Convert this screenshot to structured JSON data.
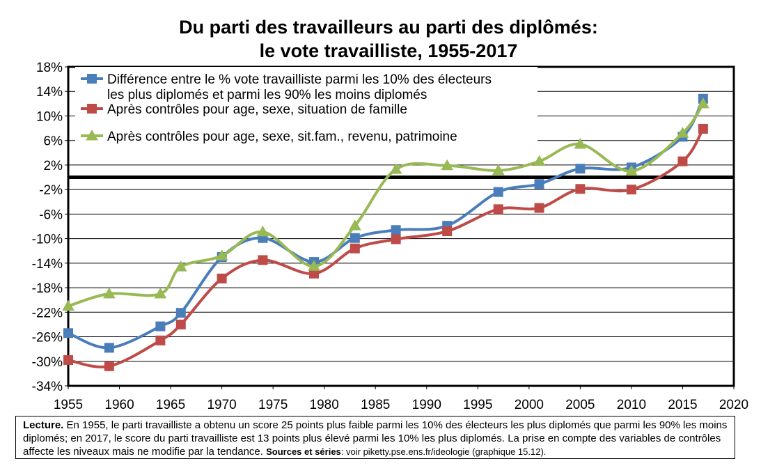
{
  "chart_data": {
    "type": "line",
    "title": [
      "Du parti des travailleurs au parti des diplômés:",
      "le vote travailliste, 1955-2017"
    ],
    "xlabel": "",
    "ylabel": "",
    "xlim": [
      1955,
      2020
    ],
    "ylim": [
      -34,
      18
    ],
    "x_ticks": [
      1955,
      1960,
      1965,
      1970,
      1975,
      1980,
      1985,
      1990,
      1995,
      2000,
      2005,
      2010,
      2015,
      2020
    ],
    "x_tick_labels": [
      "1955",
      "1960",
      "1965",
      "1970",
      "1975",
      "1980",
      "1985",
      "1990",
      "1995",
      "2000",
      "2005",
      "2010",
      "2015",
      "2020"
    ],
    "y_ticks": [
      18,
      14,
      10,
      6,
      2,
      -2,
      -6,
      -10,
      -14,
      -18,
      -22,
      -26,
      -30,
      -34
    ],
    "y_tick_labels": [
      "18%",
      "14%",
      "10%",
      "6%",
      "2%",
      "-2%",
      "-6%",
      "-10%",
      "-14%",
      "-18%",
      "-22%",
      "-26%",
      "-30%",
      "-34%"
    ],
    "grid": true,
    "reference_line_y": 0,
    "legend_placement": "top-left",
    "series": [
      {
        "name": "Différence entre le % vote travailliste parmi les 10% des électeurs les plus diplomés et parmi les 90% les moins diplomés",
        "name_lines": [
          "Différence entre le % vote travailliste parmi les 10% des électeurs",
          "les plus diplomés et parmi les 90% les moins diplomés"
        ],
        "color": "#4a7ebb",
        "marker": "square",
        "x": [
          1955,
          1959,
          1964,
          1966,
          1970,
          1974,
          1979,
          1983,
          1987,
          1992,
          1997,
          2001,
          2005,
          2010,
          2015,
          2017
        ],
        "y": [
          -25.4,
          -27.8,
          -24.3,
          -22.1,
          -13.0,
          -9.9,
          -13.8,
          -9.9,
          -8.6,
          -7.9,
          -2.4,
          -1.1,
          1.4,
          1.6,
          6.6,
          12.8
        ]
      },
      {
        "name": "Après contrôles pour age, sexe, situation de famille",
        "name_lines": [
          "Après contrôles pour age, sexe, situation de famille"
        ],
        "color": "#be4b48",
        "marker": "square",
        "x": [
          1955,
          1959,
          1964,
          1966,
          1970,
          1974,
          1979,
          1983,
          1987,
          1992,
          1997,
          2001,
          2005,
          2010,
          2015,
          2017
        ],
        "y": [
          -29.8,
          -30.8,
          -26.6,
          -24.0,
          -16.5,
          -13.5,
          -15.7,
          -11.6,
          -10.1,
          -8.8,
          -5.2,
          -5.0,
          -1.9,
          -2.0,
          2.6,
          7.9
        ]
      },
      {
        "name": "Après contrôles pour age, sexe, sit.fam., revenu, patrimoine",
        "name_lines": [
          "Après contrôles pour age, sexe, sit.fam., revenu, patrimoine"
        ],
        "color": "#98b954",
        "marker": "triangle",
        "x": [
          1955,
          1959,
          1964,
          1966,
          1970,
          1974,
          1979,
          1983,
          1987,
          1992,
          1997,
          2001,
          2005,
          2010,
          2015,
          2017
        ],
        "y": [
          -21.0,
          -19.0,
          -19.0,
          -14.6,
          -12.8,
          -8.9,
          -14.5,
          -7.9,
          1.3,
          1.9,
          1.1,
          2.6,
          5.4,
          1.0,
          7.2,
          12.0
        ]
      }
    ]
  },
  "note": {
    "lead": "Lecture.",
    "text": " En 1955, le parti travailliste a obtenu un score 25 points plus faible parmi les 10% des électeurs les plus diplomés que parmi les 90% les moins diplomés; en 2017, le score du parti travailliste est 13 points plus élevé parmi les 10% les plus diplomés. La prise en compte des variables de contrôles affecte les niveaux mais ne modifie par la tendance. ",
    "sources_label": "Sources et séries",
    "sources_text": ": voir piketty.pse.ens.fr/ideologie (graphique 15.12)."
  }
}
